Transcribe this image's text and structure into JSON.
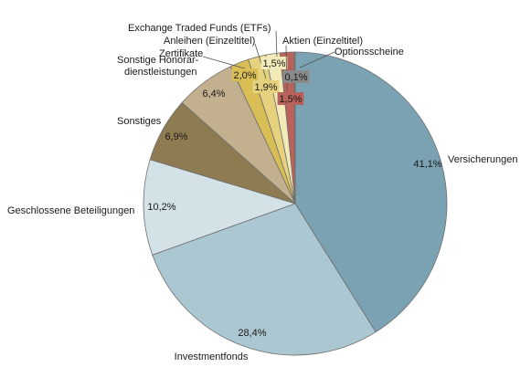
{
  "chart_data": {
    "type": "pie",
    "start_angle_deg": 0,
    "direction": "clockwise",
    "slices": [
      {
        "label": "Versicherungen",
        "value": 41.1,
        "value_label": "41,1%",
        "color": "#7aa2b2"
      },
      {
        "label": "Investmentfonds",
        "value": 28.4,
        "value_label": "28,4%",
        "color": "#abc7d1"
      },
      {
        "label": "Geschlossene Beteiligungen",
        "value": 10.2,
        "value_label": "10,2%",
        "color": "#d3e2e7"
      },
      {
        "label": "Sonstiges",
        "value": 6.9,
        "value_label": "6,9%",
        "color": "#8e7b52"
      },
      {
        "label": "Sonstige Honorar-\ndienstleistungen",
        "value": 6.4,
        "value_label": "6,4%",
        "color": "#c2b08e"
      },
      {
        "label": "Zertifikate",
        "value": 2.0,
        "value_label": "2,0%",
        "color": "#d9bd55"
      },
      {
        "label": "Anleihen (Einzeltitel)",
        "value": 1.9,
        "value_label": "1,9%",
        "color": "#e6d27e"
      },
      {
        "label": "Exchange Traded Funds (ETFs)",
        "value": 1.5,
        "value_label": "1,5%",
        "color": "#f2ebb9"
      },
      {
        "label": "Aktien (Einzeltitel)",
        "value": 1.5,
        "value_label": "1,5%",
        "color": "#b8625b"
      },
      {
        "label": "Optionsscheine",
        "value": 0.1,
        "value_label": "0,1%",
        "color": "#8a8a8a"
      }
    ]
  }
}
